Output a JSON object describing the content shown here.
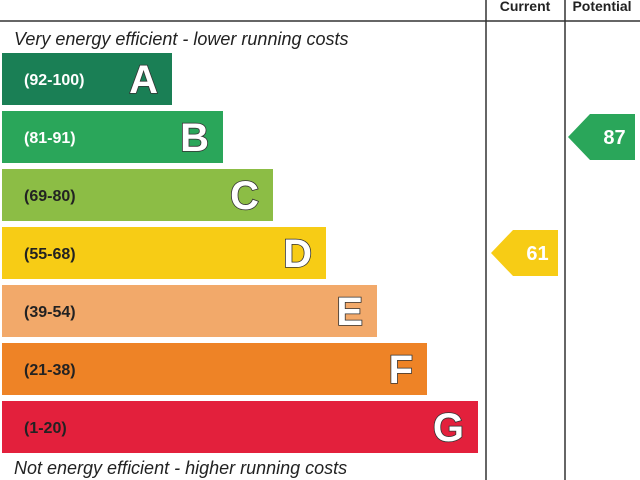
{
  "header": {
    "current_label": "Current",
    "potential_label": "Potential"
  },
  "chart_data": {
    "type": "bar",
    "top_caption": "Very energy efficient - lower running costs",
    "bottom_caption": "Not energy efficient - higher running costs",
    "bands": [
      {
        "letter": "A",
        "range": "(92-100)",
        "min": 92,
        "max": 100,
        "color": "#1a7f55",
        "range_color": "#ffffff"
      },
      {
        "letter": "B",
        "range": "(81-91)",
        "min": 81,
        "max": 91,
        "color": "#2aa65a",
        "range_color": "#ffffff"
      },
      {
        "letter": "C",
        "range": "(69-80)",
        "min": 69,
        "max": 80,
        "color": "#8cbd45",
        "range_color": "#222222"
      },
      {
        "letter": "D",
        "range": "(55-68)",
        "min": 55,
        "max": 68,
        "color": "#f7cc15",
        "range_color": "#222222"
      },
      {
        "letter": "E",
        "range": "(39-54)",
        "min": 39,
        "max": 54,
        "color": "#f2a96a",
        "range_color": "#222222"
      },
      {
        "letter": "F",
        "range": "(21-38)",
        "min": 21,
        "max": 38,
        "color": "#ee8326",
        "range_color": "#222222"
      },
      {
        "letter": "G",
        "range": "(1-20)",
        "min": 1,
        "max": 20,
        "color": "#e3203c",
        "range_color": "#222222"
      }
    ],
    "current": {
      "value": 61,
      "label": "61",
      "band": "D",
      "color": "#f7cc15"
    },
    "potential": {
      "value": 87,
      "label": "87",
      "band": "B",
      "color": "#2aa65a"
    }
  }
}
